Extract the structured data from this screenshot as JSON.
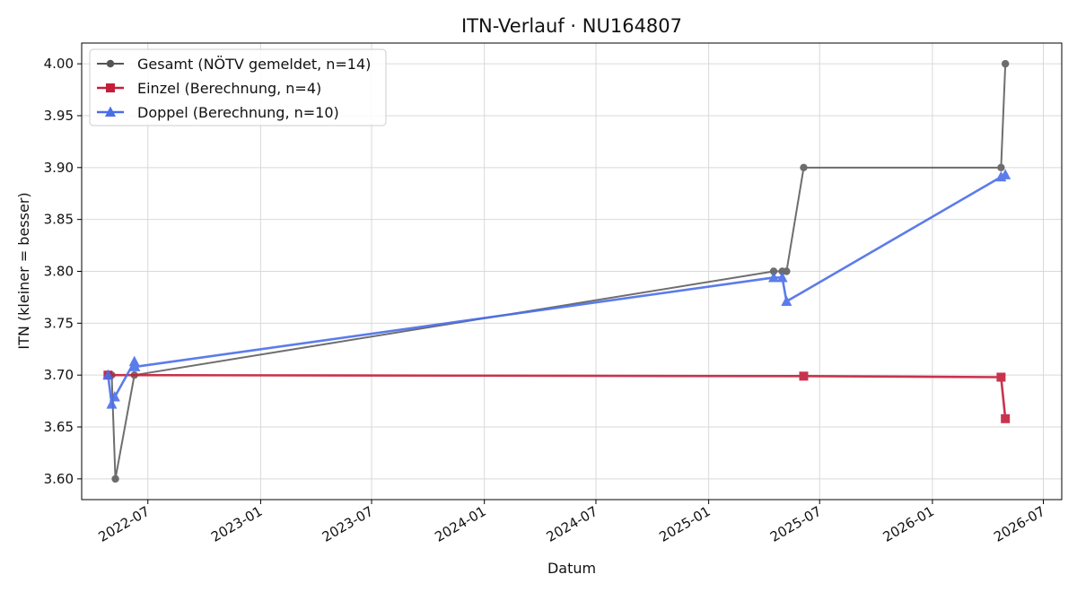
{
  "chart_data": {
    "type": "line",
    "title": "ITN-Verlauf · NU164807",
    "xlabel": "Datum",
    "ylabel": "ITN  (kleiner = besser)",
    "x_axis_type": "date",
    "xlim": [
      "2022-03-15",
      "2026-07-31"
    ],
    "ylim": [
      3.58,
      4.02
    ],
    "x_ticks": [
      "2022-07-01",
      "2023-01-01",
      "2023-07-01",
      "2024-01-01",
      "2024-07-01",
      "2025-01-01",
      "2025-07-01",
      "2026-01-01",
      "2026-07-01"
    ],
    "x_tick_labels": [
      "2022-07",
      "2023-01",
      "2023-07",
      "2024-01",
      "2024-07",
      "2025-01",
      "2025-07",
      "2026-01",
      "2026-07"
    ],
    "y_ticks": [
      3.6,
      3.65,
      3.7,
      3.75,
      3.8,
      3.85,
      3.9,
      3.95,
      4.0
    ],
    "y_tick_labels": [
      "3.60",
      "3.65",
      "3.70",
      "3.75",
      "3.80",
      "3.85",
      "3.90",
      "3.95",
      "4.00"
    ],
    "grid": true,
    "legend_position": "top-left",
    "series": [
      {
        "name": "Gesamt (NÖTV gemeldet, n=14)",
        "color": "#555555",
        "marker": "circle",
        "points": [
          {
            "x": "2022-04-27",
            "y": 3.7
          },
          {
            "x": "2022-05-03",
            "y": 3.7
          },
          {
            "x": "2022-05-09",
            "y": 3.6
          },
          {
            "x": "2022-06-09",
            "y": 3.7
          },
          {
            "x": "2025-04-17",
            "y": 3.8
          },
          {
            "x": "2025-05-01",
            "y": 3.8
          },
          {
            "x": "2025-05-08",
            "y": 3.8
          },
          {
            "x": "2025-06-05",
            "y": 3.9
          },
          {
            "x": "2026-04-23",
            "y": 3.9
          },
          {
            "x": "2026-04-30",
            "y": 4.0
          }
        ]
      },
      {
        "name": "Einzel (Berechnung, n=4)",
        "color": "#c41e3a",
        "marker": "square",
        "points": [
          {
            "x": "2022-04-27",
            "y": 3.7
          },
          {
            "x": "2025-06-05",
            "y": 3.699
          },
          {
            "x": "2026-04-23",
            "y": 3.698
          },
          {
            "x": "2026-04-30",
            "y": 3.658
          }
        ]
      },
      {
        "name": "Doppel (Berechnung, n=10)",
        "color": "#4a6ee8",
        "marker": "triangle",
        "points": [
          {
            "x": "2022-04-27",
            "y": 3.7
          },
          {
            "x": "2022-05-03",
            "y": 3.672
          },
          {
            "x": "2022-05-08",
            "y": 3.679
          },
          {
            "x": "2022-06-09",
            "y": 3.713
          },
          {
            "x": "2022-06-10",
            "y": 3.708
          },
          {
            "x": "2025-04-17",
            "y": 3.794
          },
          {
            "x": "2025-05-01",
            "y": 3.794
          },
          {
            "x": "2025-05-08",
            "y": 3.771
          },
          {
            "x": "2026-04-23",
            "y": 3.891
          },
          {
            "x": "2026-04-30",
            "y": 3.893
          }
        ]
      }
    ]
  }
}
